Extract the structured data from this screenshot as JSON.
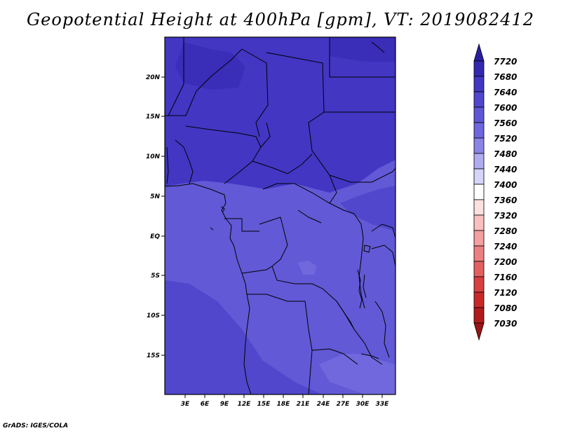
{
  "title": "Geopotential Height at 400hPa [gpm], VT: 2019082412",
  "credit": "GrADS: IGES/COLA",
  "map": {
    "lat_ticks": [
      "20N",
      "15N",
      "10N",
      "5N",
      "EQ",
      "5S",
      "10S",
      "15S"
    ],
    "lon_ticks": [
      "3E",
      "6E",
      "9E",
      "12E",
      "15E",
      "18E",
      "21E",
      "24E",
      "27E",
      "30E",
      "33E"
    ]
  },
  "colorbar": {
    "levels": [
      "7720",
      "7680",
      "7640",
      "7600",
      "7560",
      "7520",
      "7480",
      "7440",
      "7400",
      "7360",
      "7320",
      "7280",
      "7240",
      "7200",
      "7160",
      "7120",
      "7080",
      "7030"
    ],
    "colors": [
      "#2a1fa0",
      "#3427b0",
      "#4236c3",
      "#5047cc",
      "#5f56d6",
      "#6e66dc",
      "#8a84e6",
      "#b0acf0",
      "#d6d4f8",
      "#ffffff",
      "#fde0e0",
      "#f9c0c0",
      "#f3a0a0",
      "#ec8080",
      "#e46060",
      "#d84040",
      "#c82828",
      "#b01c1c",
      "#9a1414"
    ]
  }
}
